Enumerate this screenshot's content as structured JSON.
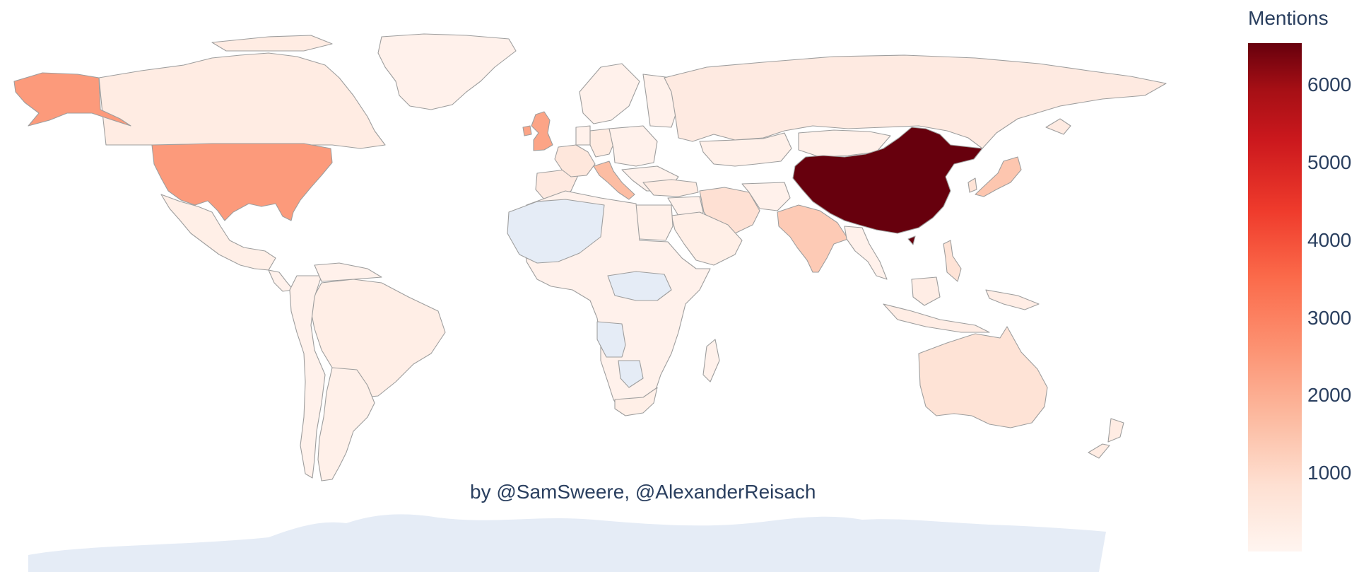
{
  "credit": "by @SamSweere, @AlexanderReisach",
  "colorbar": {
    "title": "Mentions",
    "range": [
      0,
      6550
    ],
    "ticks": [
      1000,
      2000,
      3000,
      4000,
      5000,
      6000
    ],
    "colors": [
      "#fff5f0",
      "#fee0d2",
      "#fcbba1",
      "#fc9272",
      "#fb6a4a",
      "#ef3b2c",
      "#cb181d",
      "#a50f15",
      "#67000d"
    ],
    "no_data_color": "#e5ecf6"
  },
  "regions": [
    {
      "name": "China",
      "value": 6550
    },
    {
      "name": "United States",
      "value": 2300
    },
    {
      "name": "Alaska",
      "value": 2300
    },
    {
      "name": "United Kingdom",
      "value": 2100
    },
    {
      "name": "Italy",
      "value": 1600
    },
    {
      "name": "India",
      "value": 1300
    },
    {
      "name": "Japan",
      "value": 1400
    },
    {
      "name": "Australia",
      "value": 700
    },
    {
      "name": "Iran",
      "value": 800
    },
    {
      "name": "France",
      "value": 550
    },
    {
      "name": "Spain",
      "value": 450
    },
    {
      "name": "Germany",
      "value": 400
    },
    {
      "name": "Canada",
      "value": 350
    },
    {
      "name": "Russia",
      "value": 420
    },
    {
      "name": "Brazil",
      "value": 280
    },
    {
      "name": "Mexico",
      "value": 250
    },
    {
      "name": "South Korea",
      "value": 700
    },
    {
      "name": "New Zealand",
      "value": 350
    },
    {
      "name": "Philippines",
      "value": 700
    },
    {
      "name": "Saudi Arabia",
      "value": 250
    },
    {
      "name": "Egypt",
      "value": 200
    },
    {
      "name": "Greenland",
      "value": 150
    },
    {
      "name": "Kazakhstan",
      "value": 180
    },
    {
      "name": "Mongolia",
      "value": 200
    },
    {
      "name": "South Africa",
      "value": 250
    },
    {
      "name": "Indonesia",
      "value": 300
    },
    {
      "name": "Turkey",
      "value": 350
    },
    {
      "name": "Argentina",
      "value": 200
    }
  ]
}
